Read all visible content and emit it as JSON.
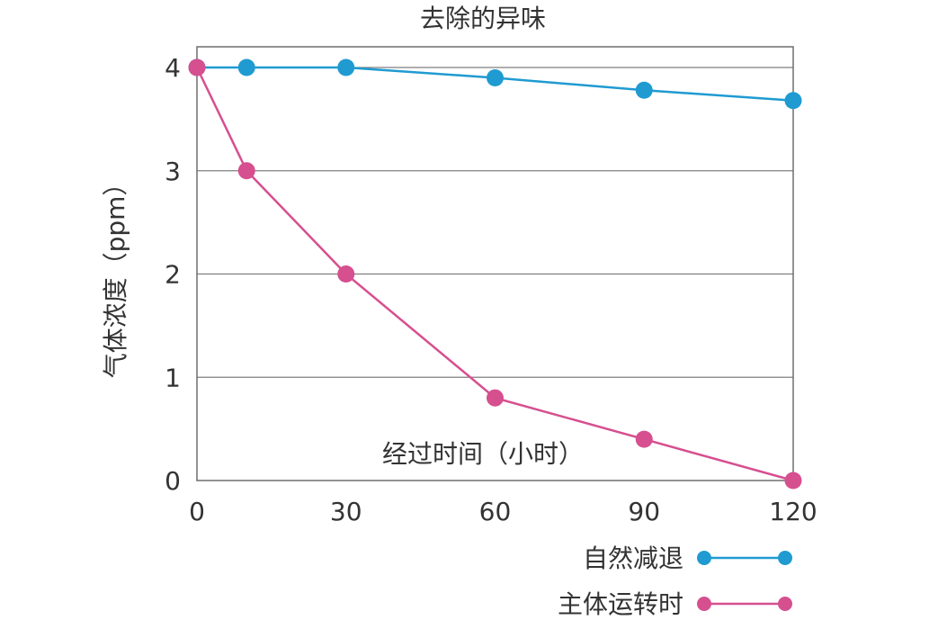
{
  "chart_data": {
    "type": "line",
    "title": "去除的异味",
    "xlabel": "经过时间（小时）",
    "ylabel": "气体浓度（ppm）",
    "x_ticks": [
      0,
      30,
      60,
      90,
      120
    ],
    "y_ticks": [
      0,
      1,
      2,
      3,
      4
    ],
    "xlim": [
      0,
      120
    ],
    "ylim": [
      0,
      4
    ],
    "grid": "horizontal",
    "legend_position": "bottom-right",
    "series": [
      {
        "name": "自然减退",
        "color": "#1f9bd1",
        "x": [
          0,
          10,
          30,
          60,
          90,
          120
        ],
        "y": [
          4,
          4,
          4,
          3.9,
          3.78,
          3.68
        ]
      },
      {
        "name": "主体运转时",
        "color": "#d64f8f",
        "x": [
          0,
          10,
          30,
          60,
          90,
          120
        ],
        "y": [
          4,
          3,
          2,
          0.8,
          0.4,
          0
        ]
      }
    ]
  }
}
